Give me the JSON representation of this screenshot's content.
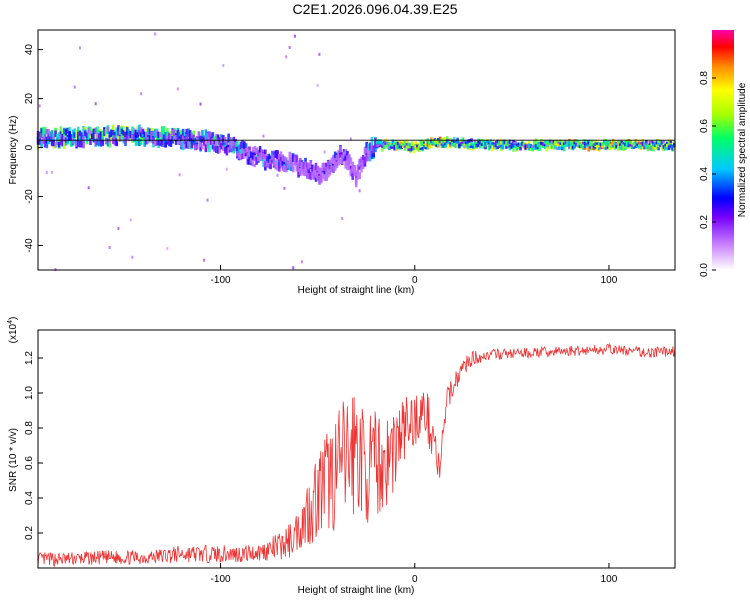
{
  "page": {
    "title": "C2E1.2026.096.04.39.E25"
  },
  "chart_data": [
    {
      "type": "heatmap",
      "title": "C2E1.2026.096.04.39.E25",
      "xlabel": "Height of straight line (km)",
      "ylabel": "Frequency (Hz)",
      "xlim": [
        -194,
        134
      ],
      "ylim": [
        -50,
        48
      ],
      "x_ticks": [
        -100,
        0,
        100
      ],
      "x_tick_labels": [
        "-100",
        "0",
        "100"
      ],
      "y_ticks": [
        -40,
        -20,
        0,
        20,
        40
      ],
      "y_tick_labels": [
        "-40",
        "-20",
        "0",
        "20",
        "40"
      ],
      "colorbar": {
        "label": "Normalized spectral amplitude",
        "range": [
          0,
          1
        ],
        "ticks": [
          0.0,
          0.2,
          0.4,
          0.6,
          0.8
        ],
        "tick_labels": [
          "0.0",
          "0.2",
          "0.4",
          "0.6",
          "0.8"
        ],
        "colors": [
          "#ffffff",
          "#cc88ff",
          "#7700ff",
          "#0000ff",
          "#00c8ff",
          "#00ff66",
          "#aaff00",
          "#ffff00",
          "#ff8800",
          "#ff0000",
          "#ff00aa"
        ]
      },
      "ridge": {
        "description": "dominant frequency track vs height",
        "x": [
          -194,
          -170,
          -150,
          -130,
          -110,
          -95,
          -85,
          -75,
          -65,
          -55,
          -48,
          -42,
          -38,
          -34,
          -30,
          -25,
          -20,
          -10,
          0,
          10,
          20,
          40,
          60,
          80,
          100,
          120,
          134
        ],
        "y": [
          4,
          4,
          5,
          4,
          3,
          1,
          -3,
          -5,
          -6,
          -9,
          -11,
          -7,
          -3,
          -6,
          -12,
          -2,
          1,
          1,
          0,
          2,
          2,
          1,
          1,
          1,
          1,
          1,
          1
        ],
        "amplitude": [
          0.55,
          0.6,
          0.6,
          0.55,
          0.5,
          0.45,
          0.4,
          0.4,
          0.35,
          0.3,
          0.25,
          0.3,
          0.3,
          0.25,
          0.2,
          0.35,
          0.55,
          0.7,
          0.85,
          0.8,
          0.7,
          0.65,
          0.7,
          0.75,
          0.8,
          0.75,
          0.7
        ]
      },
      "reference_line_y": 3
    },
    {
      "type": "line",
      "xlabel": "Height of straight line (km)",
      "ylabel": "SNR (10 * v/v)",
      "y_multiplier_label": "(x10",
      "y_multiplier_exp": "4",
      "y_multiplier_close": ")",
      "xlim": [
        -194,
        134
      ],
      "ylim": [
        0,
        1.36
      ],
      "x_ticks": [
        -100,
        0,
        100
      ],
      "x_tick_labels": [
        "-100",
        "0",
        "100"
      ],
      "y_ticks": [
        0.2,
        0.4,
        0.6,
        0.8,
        1.0,
        1.2
      ],
      "y_tick_labels": [
        "0.2",
        "0.4",
        "0.6",
        "0.8",
        "1.0",
        "1.2"
      ],
      "series": [
        {
          "name": "SNR",
          "color": "#ee3333",
          "x": [
            -194,
            -180,
            -160,
            -140,
            -120,
            -100,
            -90,
            -80,
            -70,
            -65,
            -60,
            -55,
            -50,
            -45,
            -40,
            -35,
            -30,
            -25,
            -20,
            -15,
            -10,
            -5,
            0,
            5,
            10,
            13,
            15,
            18,
            20,
            25,
            30,
            40,
            60,
            80,
            100,
            120,
            134
          ],
          "y": [
            0.05,
            0.05,
            0.06,
            0.06,
            0.08,
            0.08,
            0.08,
            0.09,
            0.12,
            0.15,
            0.22,
            0.32,
            0.42,
            0.5,
            0.55,
            0.62,
            0.7,
            0.55,
            0.6,
            0.6,
            0.7,
            0.8,
            0.85,
            0.9,
            0.75,
            0.5,
            0.85,
            1.0,
            1.05,
            1.15,
            1.2,
            1.22,
            1.23,
            1.24,
            1.25,
            1.23,
            1.24
          ],
          "jitter": [
            0.04,
            0.04,
            0.04,
            0.04,
            0.05,
            0.05,
            0.05,
            0.05,
            0.08,
            0.1,
            0.12,
            0.2,
            0.25,
            0.3,
            0.35,
            0.38,
            0.4,
            0.3,
            0.3,
            0.3,
            0.25,
            0.2,
            0.15,
            0.15,
            0.15,
            0.1,
            0.1,
            0.08,
            0.06,
            0.05,
            0.04,
            0.03,
            0.03,
            0.03,
            0.03,
            0.03,
            0.03
          ]
        }
      ]
    }
  ]
}
